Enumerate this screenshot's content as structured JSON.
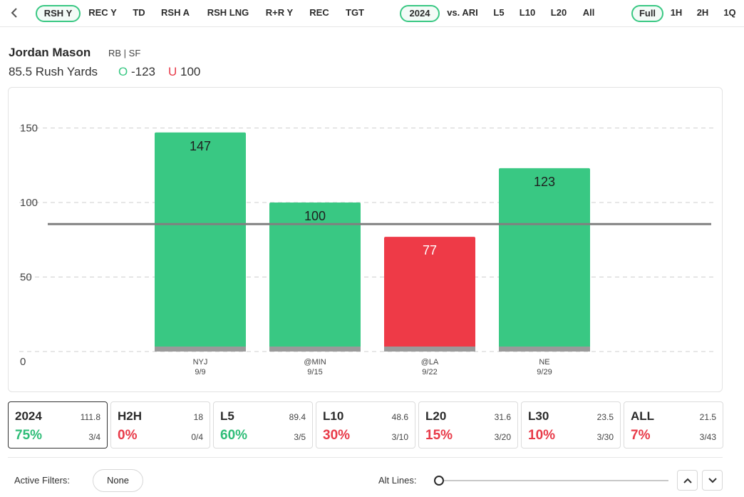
{
  "topbar": {
    "stat_tabs": [
      {
        "label": "RSH Y",
        "active": true
      },
      {
        "label": "REC Y",
        "active": false
      },
      {
        "label": "TD",
        "active": false
      },
      {
        "label": "RSH A",
        "active": false
      },
      {
        "label": "RSH LNG",
        "active": false
      },
      {
        "label": "R+R Y",
        "active": false
      },
      {
        "label": "REC",
        "active": false
      },
      {
        "label": "TGT",
        "active": false
      }
    ],
    "range_tabs": [
      {
        "label": "2024",
        "active": true
      },
      {
        "label": "vs. ARI",
        "active": false
      },
      {
        "label": "L5",
        "active": false
      },
      {
        "label": "L10",
        "active": false
      },
      {
        "label": "L20",
        "active": false
      },
      {
        "label": "All",
        "active": false
      }
    ],
    "period_tabs": [
      {
        "label": "Full",
        "active": true
      },
      {
        "label": "1H",
        "active": false
      },
      {
        "label": "2H",
        "active": false
      },
      {
        "label": "1Q",
        "active": false
      }
    ]
  },
  "player": {
    "name": "Jordan Mason",
    "meta": "RB | SF",
    "line": "85.5 Rush Yards",
    "over_label": "O",
    "over_odds": "-123",
    "under_label": "U",
    "under_odds": "100"
  },
  "chart_data": {
    "type": "bar",
    "categories": [
      "NYJ",
      "@MIN",
      "@LA",
      "NE"
    ],
    "dates": [
      "9/9",
      "9/15",
      "9/22",
      "9/29"
    ],
    "values": [
      147,
      100,
      77,
      123
    ],
    "value_labels": [
      "147",
      "100",
      "77",
      "123"
    ],
    "line": 85.5,
    "ylim": [
      0,
      160
    ],
    "yticks": [
      0,
      50,
      100,
      150
    ],
    "grid": true,
    "colors": {
      "over": "#39c883",
      "under": "#ee3a47",
      "base": "#9a9a9a",
      "line": "#808080"
    }
  },
  "stat_cards": [
    {
      "label": "2024",
      "avg": "111.8",
      "pct": "75%",
      "frac": "3/4",
      "color": "green",
      "active": true
    },
    {
      "label": "H2H",
      "avg": "18",
      "pct": "0%",
      "frac": "0/4",
      "color": "red",
      "active": false
    },
    {
      "label": "L5",
      "avg": "89.4",
      "pct": "60%",
      "frac": "3/5",
      "color": "green",
      "active": false
    },
    {
      "label": "L10",
      "avg": "48.6",
      "pct": "30%",
      "frac": "3/10",
      "color": "red",
      "active": false
    },
    {
      "label": "L20",
      "avg": "31.6",
      "pct": "15%",
      "frac": "3/20",
      "color": "red",
      "active": false
    },
    {
      "label": "L30",
      "avg": "23.5",
      "pct": "10%",
      "frac": "3/30",
      "color": "red",
      "active": false
    },
    {
      "label": "ALL",
      "avg": "21.5",
      "pct": "7%",
      "frac": "3/43",
      "color": "red",
      "active": false
    }
  ],
  "footer": {
    "filters_label": "Active Filters:",
    "filter_value": "None",
    "alt_lines_label": "Alt Lines:"
  }
}
